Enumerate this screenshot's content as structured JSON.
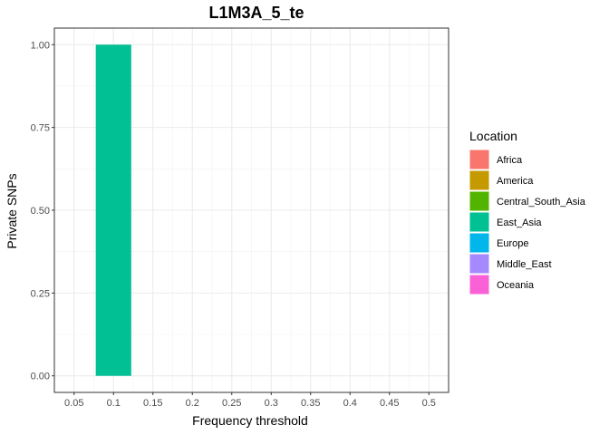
{
  "chart_data": {
    "type": "bar",
    "title": "L1M3A_5_te",
    "xlabel": "Frequency threshold",
    "ylabel": "Private SNPs",
    "x_ticks": [
      "0.05",
      "0.1",
      "0.15",
      "0.2",
      "0.25",
      "0.3",
      "0.35",
      "0.4",
      "0.45",
      "0.5"
    ],
    "y_ticks": [
      "0.00",
      "0.25",
      "0.50",
      "0.75",
      "1.00"
    ],
    "xlim": [
      0.025,
      0.525
    ],
    "ylim": [
      -0.05,
      1.05
    ],
    "bar_width": 0.045,
    "grid": true,
    "legend_position": "right",
    "legend_title": "Location",
    "legend": [
      {
        "name": "Africa",
        "color": "#F8766D"
      },
      {
        "name": "America",
        "color": "#C49A00"
      },
      {
        "name": "Central_South_Asia",
        "color": "#53B400"
      },
      {
        "name": "East_Asia",
        "color": "#00C094"
      },
      {
        "name": "Europe",
        "color": "#00B6EB"
      },
      {
        "name": "Middle_East",
        "color": "#A58AFF"
      },
      {
        "name": "Oceania",
        "color": "#FB61D7"
      }
    ],
    "bars": [
      {
        "x": 0.1,
        "value": 1.0,
        "location": "East_Asia",
        "color": "#00C094"
      }
    ]
  }
}
